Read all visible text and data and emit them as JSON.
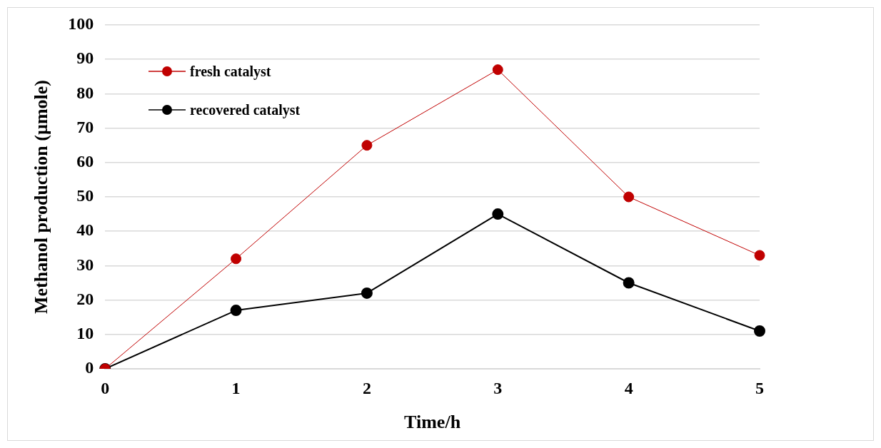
{
  "chart_data": {
    "type": "line",
    "xlabel": "Time/h",
    "ylabel": "Methanol production (µmole)",
    "categories": [
      "0",
      "1",
      "2",
      "3",
      "4",
      "5"
    ],
    "series": [
      {
        "name": "fresh catalyst",
        "color": "#c00000",
        "values": [
          0,
          32,
          65,
          87,
          50,
          33
        ]
      },
      {
        "name": "recovered catalyst",
        "color": "#000000",
        "values": [
          0,
          17,
          22,
          45,
          25,
          11
        ]
      }
    ],
    "ylim": [
      0,
      100
    ],
    "yticks": [
      0,
      10,
      20,
      30,
      40,
      50,
      60,
      70,
      80,
      90,
      100
    ],
    "grid": "y",
    "legend": "top left",
    "marker": "circle",
    "line_style": "solid"
  }
}
